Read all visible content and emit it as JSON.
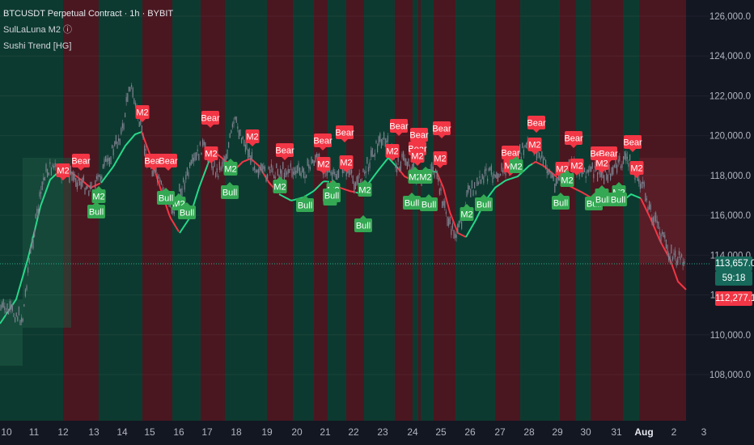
{
  "legend": {
    "title": "BTCUSDT Perpetual Contract · 1h · BYBIT",
    "indicator1": "SulLaLuna M2 ⓘ",
    "indicator2": "Sushi Trend [HG]"
  },
  "price_axis": {
    "ticks": [
      "126,000.0",
      "124,000.0",
      "122,000.0",
      "120,000.0",
      "118,000.0",
      "116,000.0",
      "114,000.0",
      "112,000.0",
      "110,000.0",
      "108,000.0"
    ],
    "tick_values": [
      126000,
      124000,
      122000,
      120000,
      118000,
      116000,
      114000,
      112000,
      110000,
      108000
    ],
    "current_price": "113,657.0",
    "countdown": "59:18",
    "line_value": "112,277.1"
  },
  "time_axis": {
    "labels": [
      "10",
      "11",
      "12",
      "13",
      "14",
      "15",
      "16",
      "17",
      "18",
      "19",
      "20",
      "21",
      "22",
      "23",
      "24",
      "25",
      "26",
      "27",
      "28",
      "29",
      "30",
      "31",
      "Aug",
      "2",
      "3"
    ]
  },
  "colors": {
    "background": "#131722",
    "bull_zone": "#0d3a30",
    "bear_zone": "#4a1720",
    "bull_line": "#26d98a",
    "bear_line": "#f23645",
    "bull_label": "#34a853",
    "bear_label": "#f23645",
    "candles": "#6e7380"
  },
  "signals": {
    "bull_text": "Bull",
    "bear_text": "Bear",
    "m2_text": "M2"
  }
}
